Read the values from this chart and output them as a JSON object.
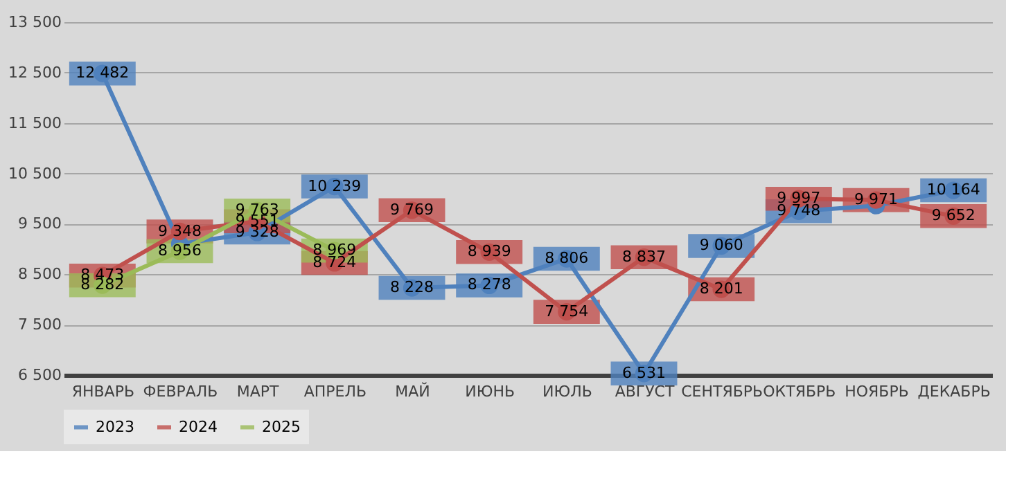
{
  "chart_data": {
    "type": "line",
    "categories": [
      "ЯНВАРЬ",
      "ФЕВРАЛЬ",
      "МАРТ",
      "АПРЕЛЬ",
      "МАЙ",
      "ИЮНЬ",
      "ИЮЛЬ",
      "АВГУСТ",
      "СЕНТЯБРЬ",
      "ОКТЯБРЬ",
      "НОЯБРЬ",
      "ДЕКАБРЬ"
    ],
    "series": [
      {
        "name": "2023",
        "color": "#4f81bd",
        "values": [
          12482,
          9100,
          9328,
          10239,
          8228,
          8278,
          8806,
          6531,
          9060,
          9748,
          9860,
          10164
        ],
        "value_labels": [
          "12 482",
          null,
          "9 328",
          "10 239",
          "8 228",
          "8 278",
          "8 806",
          "6 531",
          "9 060",
          "9 748",
          null,
          "10 164"
        ]
      },
      {
        "name": "2024",
        "color": "#c0504d",
        "values": [
          8473,
          9348,
          9551,
          8724,
          9769,
          8939,
          7754,
          8837,
          8201,
          9997,
          9971,
          9652
        ],
        "value_labels": [
          "8 473",
          "9 348",
          "9 551",
          "8 724",
          "9 769",
          "8 939",
          "7 754",
          "8 837",
          "8 201",
          "9 997",
          "9 971",
          "9 652"
        ]
      },
      {
        "name": "2025",
        "color": "#9bbb59",
        "values": [
          8282,
          8956,
          9763,
          8969,
          null,
          null,
          null,
          null,
          null,
          null,
          null,
          null
        ],
        "value_labels": [
          "8 282",
          "8 956",
          "9 763",
          "8 969",
          null,
          null,
          null,
          null,
          null,
          null,
          null,
          null
        ]
      }
    ],
    "ylim": [
      6500,
      13500
    ],
    "yticks": [
      6500,
      7500,
      8500,
      9500,
      10500,
      11500,
      12500,
      13500
    ],
    "grid": "y",
    "legend": "bottom",
    "marker": "circle",
    "line_style": "solid"
  }
}
